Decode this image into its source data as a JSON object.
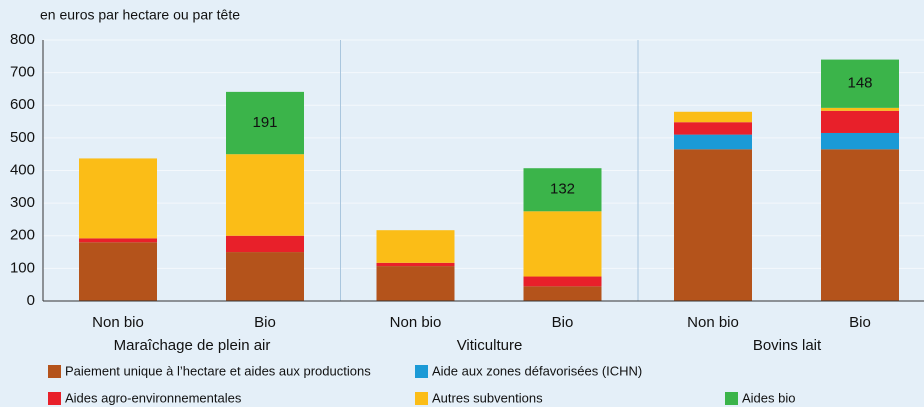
{
  "chart_data": {
    "type": "bar",
    "stacked": true,
    "subtitle": "en euros par hectare ou par tête",
    "categories": [
      "Non bio",
      "Bio",
      "Non bio",
      "Bio",
      "Non bio",
      "Bio"
    ],
    "groups": [
      "Maraîchage de plein air",
      "Viticulture",
      "Bovins lait"
    ],
    "series": [
      {
        "name": "Paiement unique à l’hectare et aides aux productions",
        "color": "#b4531b",
        "values": [
          180,
          150,
          107,
          45,
          465,
          465
        ]
      },
      {
        "name": "Aide aux zones défavorisées (ICHN)",
        "color": "#1b9ad6",
        "values": [
          0,
          0,
          0,
          0,
          45,
          50
        ]
      },
      {
        "name": "Aides agro-environnementales",
        "color": "#e8202a",
        "values": [
          12,
          50,
          10,
          30,
          38,
          68
        ]
      },
      {
        "name": "Autres subventions",
        "color": "#fbbd17",
        "values": [
          245,
          250,
          100,
          200,
          32,
          9
        ]
      },
      {
        "name": "Aides bio",
        "color": "#3bb44a",
        "values": [
          0,
          191,
          0,
          132,
          0,
          148
        ]
      }
    ],
    "labeled_series": 4,
    "ylim": [
      0,
      800
    ],
    "yticks": [
      0,
      100,
      200,
      300,
      400,
      500,
      600,
      700,
      800
    ],
    "grid": true
  }
}
